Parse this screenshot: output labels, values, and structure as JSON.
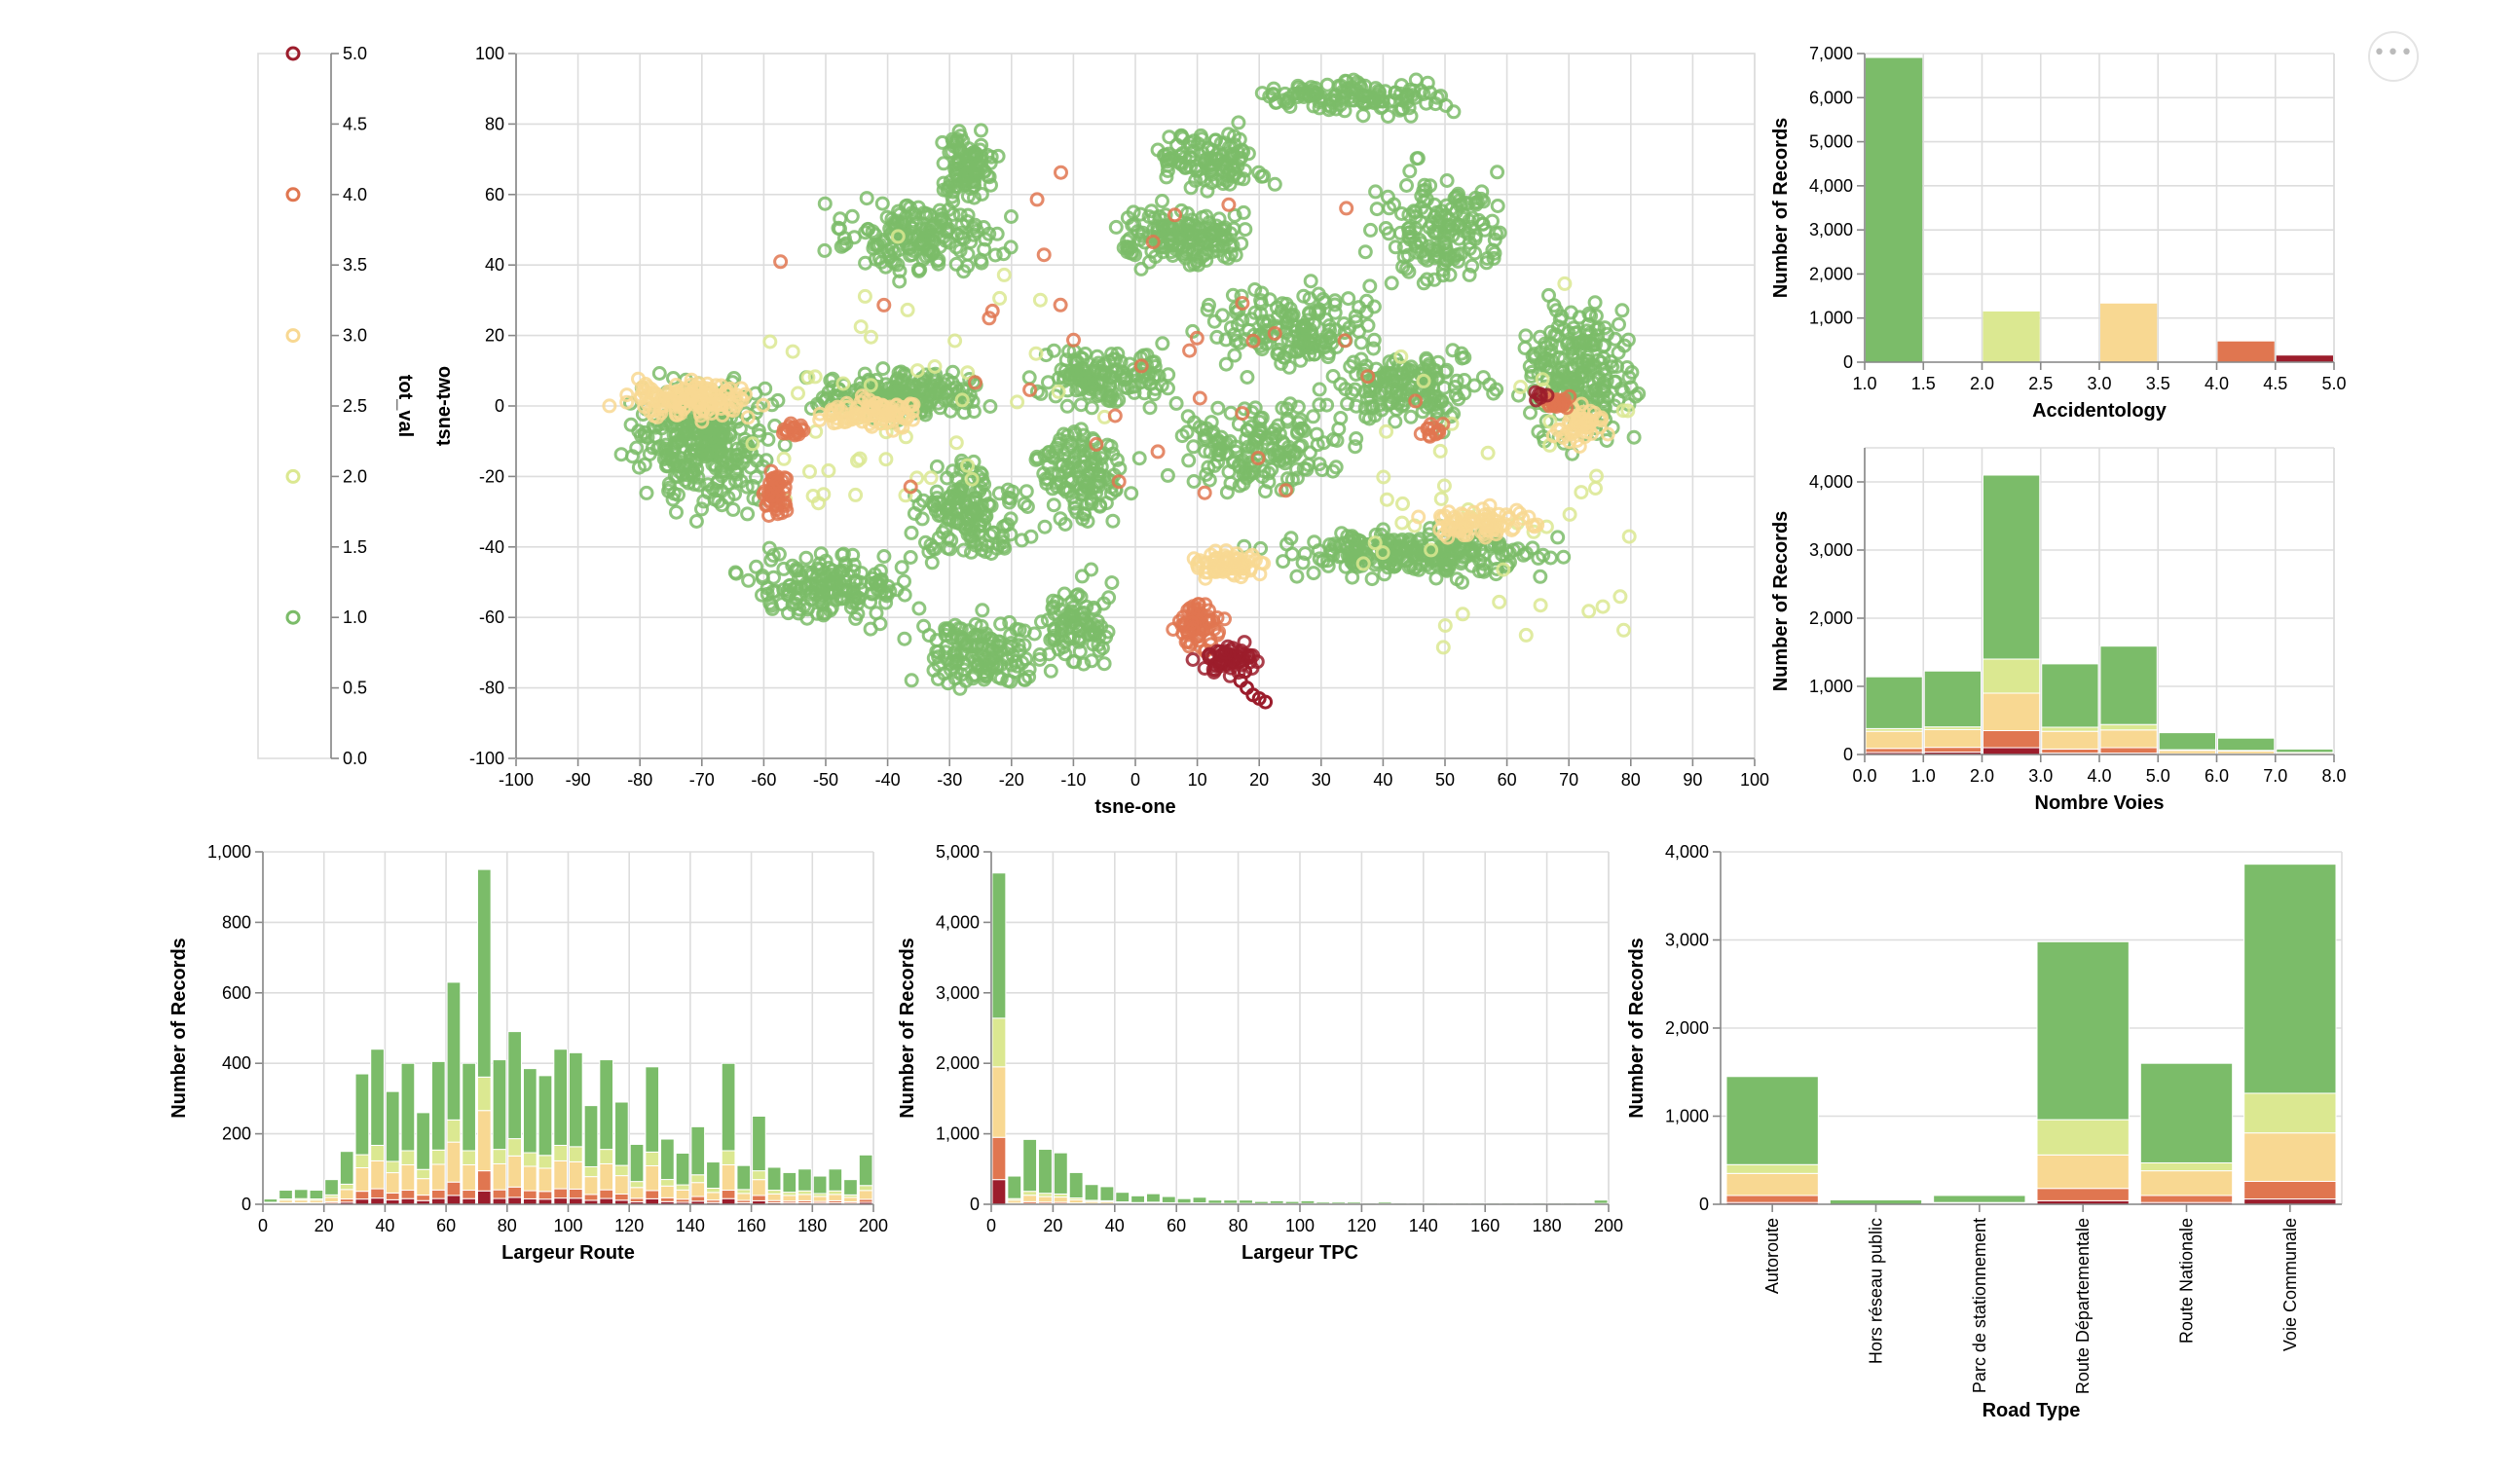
{
  "menu": {
    "icon": "ellipsis-icon",
    "label": "•••"
  },
  "colors": {
    "1": "#7bbc69",
    "2": "#dbe891",
    "3": "#f8d892",
    "4": "#e07650",
    "5": "#9c1d2c"
  },
  "chart_data": [
    {
      "id": "legend",
      "type": "legend",
      "title": "tot_val",
      "ticks": [
        "5.0",
        "4.5",
        "4.0",
        "3.5",
        "3.0",
        "2.5",
        "2.0",
        "1.5",
        "1.0",
        "0.5",
        "0.0"
      ],
      "symbols": [
        5,
        4,
        3,
        2,
        1
      ]
    },
    {
      "id": "scatter",
      "type": "scatter",
      "xlabel": "tsne-one",
      "ylabel": "tsne-two",
      "xlim": [
        -100,
        100
      ],
      "ylim": [
        -100,
        100
      ],
      "xticks": [
        "-100",
        "-90",
        "-80",
        "-70",
        "-60",
        "-50",
        "-40",
        "-30",
        "-20",
        "-10",
        "0",
        "10",
        "20",
        "30",
        "40",
        "50",
        "60",
        "70",
        "80",
        "90",
        "100"
      ],
      "yticks": [
        "100",
        "80",
        "60",
        "40",
        "20",
        "0",
        "-20",
        "-40",
        "-60",
        "-80",
        "-100"
      ],
      "grid": true,
      "clusters": [
        {
          "x": -70,
          "y": -10,
          "sx": 10,
          "sy": 16,
          "n": 320,
          "v": 1
        },
        {
          "x": -72,
          "y": 2,
          "sx": 10,
          "sy": 5,
          "n": 130,
          "v": 3
        },
        {
          "x": -50,
          "y": -52,
          "sx": 12,
          "sy": 9,
          "n": 170,
          "v": 1
        },
        {
          "x": -38,
          "y": 3,
          "sx": 12,
          "sy": 6,
          "n": 200,
          "v": 1
        },
        {
          "x": -42,
          "y": -2,
          "sx": 8,
          "sy": 4,
          "n": 90,
          "v": 3
        },
        {
          "x": -35,
          "y": 48,
          "sx": 12,
          "sy": 10,
          "n": 170,
          "v": 1
        },
        {
          "x": -27,
          "y": 68,
          "sx": 4,
          "sy": 9,
          "n": 100,
          "v": 1
        },
        {
          "x": -27,
          "y": -30,
          "sx": 8,
          "sy": 12,
          "n": 160,
          "v": 1
        },
        {
          "x": -25,
          "y": -70,
          "sx": 10,
          "sy": 10,
          "n": 140,
          "v": 1
        },
        {
          "x": -10,
          "y": -62,
          "sx": 5,
          "sy": 12,
          "n": 90,
          "v": 1
        },
        {
          "x": -8,
          "y": -20,
          "sx": 7,
          "sy": 12,
          "n": 130,
          "v": 1
        },
        {
          "x": -5,
          "y": 8,
          "sx": 10,
          "sy": 8,
          "n": 140,
          "v": 1
        },
        {
          "x": 8,
          "y": 48,
          "sx": 10,
          "sy": 8,
          "n": 160,
          "v": 1
        },
        {
          "x": 12,
          "y": 70,
          "sx": 8,
          "sy": 8,
          "n": 110,
          "v": 1
        },
        {
          "x": 35,
          "y": 88,
          "sx": 15,
          "sy": 5,
          "n": 130,
          "v": 1
        },
        {
          "x": 25,
          "y": 22,
          "sx": 12,
          "sy": 10,
          "n": 160,
          "v": 1
        },
        {
          "x": 20,
          "y": -12,
          "sx": 12,
          "sy": 12,
          "n": 160,
          "v": 1
        },
        {
          "x": 45,
          "y": 5,
          "sx": 12,
          "sy": 10,
          "n": 160,
          "v": 1
        },
        {
          "x": 50,
          "y": 50,
          "sx": 10,
          "sy": 14,
          "n": 160,
          "v": 1
        },
        {
          "x": 72,
          "y": 10,
          "sx": 8,
          "sy": 18,
          "n": 220,
          "v": 1
        },
        {
          "x": 45,
          "y": -42,
          "sx": 20,
          "sy": 6,
          "n": 260,
          "v": 1
        },
        {
          "x": 55,
          "y": -33,
          "sx": 8,
          "sy": 4,
          "n": 80,
          "v": 3
        },
        {
          "x": 15,
          "y": -45,
          "sx": 6,
          "sy": 4,
          "n": 70,
          "v": 3
        },
        {
          "x": 72,
          "y": -5,
          "sx": 4,
          "sy": 5,
          "n": 45,
          "v": 3
        },
        {
          "x": -58,
          "y": -25,
          "sx": 2,
          "sy": 5,
          "n": 55,
          "v": 4
        },
        {
          "x": -55,
          "y": -7,
          "sx": 2,
          "sy": 2,
          "n": 18,
          "v": 4
        },
        {
          "x": 10,
          "y": -62,
          "sx": 3,
          "sy": 6,
          "n": 70,
          "v": 4
        },
        {
          "x": 68,
          "y": 1,
          "sx": 2,
          "sy": 2,
          "n": 22,
          "v": 4
        },
        {
          "x": 48,
          "y": -7,
          "sx": 2,
          "sy": 2,
          "n": 12,
          "v": 4
        },
        {
          "x": 15,
          "y": -72,
          "sx": 4,
          "sy": 4,
          "n": 60,
          "v": 5
        },
        {
          "x": 65,
          "y": 3,
          "sx": 1.2,
          "sy": 1.2,
          "n": 6,
          "v": 5
        },
        {
          "x": 60,
          "y": -20,
          "sx": 30,
          "sy": 50,
          "n": 50,
          "v": 2
        },
        {
          "x": -40,
          "y": 0,
          "sx": 30,
          "sy": 40,
          "n": 50,
          "v": 2
        },
        {
          "x": 0,
          "y": 10,
          "sx": 50,
          "sy": 50,
          "n": 35,
          "v": 4
        }
      ],
      "worm": {
        "x": [
          17,
          18,
          19,
          20,
          21
        ],
        "y": [
          -78,
          -80,
          -82,
          -83,
          -84
        ],
        "v": 5
      }
    },
    {
      "id": "accidentology",
      "type": "bar",
      "xlabel": "Accidentology",
      "ylabel": "Number of Records",
      "xlim": [
        1,
        5
      ],
      "ylim": [
        0,
        7000
      ],
      "xticks": [
        "1.0",
        "1.5",
        "2.0",
        "2.5",
        "3.0",
        "3.5",
        "4.0",
        "4.5",
        "5.0"
      ],
      "yticks": [
        "7,000",
        "6,000",
        "5,000",
        "4,000",
        "3,000",
        "2,000",
        "1,000",
        "0"
      ],
      "grid": true,
      "bars": [
        {
          "x0": 1.0,
          "x1": 1.5,
          "value": 6900,
          "v": 1
        },
        {
          "x0": 2.0,
          "x1": 2.5,
          "value": 1150,
          "v": 2
        },
        {
          "x0": 3.0,
          "x1": 3.5,
          "value": 1330,
          "v": 3
        },
        {
          "x0": 4.0,
          "x1": 4.5,
          "value": 470,
          "v": 4
        },
        {
          "x0": 4.5,
          "x1": 5.0,
          "value": 150,
          "v": 5
        }
      ]
    },
    {
      "id": "nombre-voies",
      "type": "bar",
      "stacked": true,
      "xlabel": "Nombre Voies",
      "ylabel": "Number of Records",
      "xlim": [
        0,
        8
      ],
      "ylim": [
        0,
        4500
      ],
      "xticks": [
        "0.0",
        "1.0",
        "2.0",
        "3.0",
        "4.0",
        "5.0",
        "6.0",
        "7.0",
        "8.0"
      ],
      "yticks": [
        "4,000",
        "3,000",
        "2,000",
        "1,000",
        "0"
      ],
      "grid": true,
      "bins": [
        {
          "x0": 0,
          "x1": 1,
          "stack": [
            760,
            40,
            250,
            60,
            30
          ]
        },
        {
          "x0": 1,
          "x1": 2,
          "stack": [
            820,
            40,
            260,
            70,
            35
          ]
        },
        {
          "x0": 2,
          "x1": 2.5,
          "stack": [
            2700,
            500,
            550,
            250,
            100
          ]
        },
        {
          "x0": 2.5,
          "x1": 3,
          "stack": [
            2700,
            500,
            550,
            250,
            100
          ]
        },
        {
          "x0": 3,
          "x1": 4,
          "stack": [
            930,
            60,
            260,
            60,
            20
          ]
        },
        {
          "x0": 4,
          "x1": 5,
          "stack": [
            1150,
            80,
            260,
            80,
            20
          ]
        },
        {
          "x0": 5,
          "x1": 6,
          "stack": [
            250,
            10,
            50,
            10,
            0
          ]
        },
        {
          "x0": 6,
          "x1": 7,
          "stack": [
            180,
            10,
            40,
            10,
            0
          ]
        },
        {
          "x0": 7,
          "x1": 8,
          "stack": [
            50,
            5,
            20,
            5,
            0
          ]
        }
      ]
    },
    {
      "id": "largeur-route",
      "type": "bar",
      "stacked": true,
      "xlabel": "Largeur Route",
      "ylabel": "Number of Records",
      "xlim": [
        0,
        200
      ],
      "ylim": [
        0,
        1000
      ],
      "xticks": [
        "0",
        "20",
        "40",
        "60",
        "80",
        "100",
        "120",
        "140",
        "160",
        "180",
        "200"
      ],
      "yticks": [
        "1,000",
        "800",
        "600",
        "400",
        "200",
        "0"
      ],
      "grid": true,
      "binWidth": 5,
      "totals": [
        15,
        40,
        42,
        40,
        70,
        150,
        370,
        440,
        320,
        400,
        260,
        405,
        630,
        400,
        950,
        410,
        490,
        385,
        365,
        440,
        430,
        280,
        410,
        290,
        170,
        390,
        185,
        145,
        220,
        120,
        400,
        110,
        250,
        105,
        90,
        100,
        80,
        100,
        70,
        140
      ],
      "shares": [
        0.62,
        0.1,
        0.18,
        0.06,
        0.04
      ]
    },
    {
      "id": "largeur-tpc",
      "type": "bar",
      "stacked": true,
      "xlabel": "Largeur TPC",
      "ylabel": "Number of Records",
      "xlim": [
        0,
        200
      ],
      "ylim": [
        0,
        5000
      ],
      "xticks": [
        "0",
        "20",
        "40",
        "60",
        "80",
        "100",
        "120",
        "140",
        "160",
        "180",
        "200"
      ],
      "yticks": [
        "5,000",
        "4,000",
        "3,000",
        "2,000",
        "1,000",
        "0"
      ],
      "grid": true,
      "binWidth": 5,
      "first": [
        2060,
        690,
        1000,
        600,
        350
      ],
      "totals": [
        4700,
        400,
        920,
        780,
        730,
        450,
        280,
        250,
        170,
        120,
        150,
        110,
        80,
        100,
        60,
        60,
        60,
        40,
        50,
        40,
        50,
        30,
        30,
        30,
        20,
        30,
        20,
        20,
        20,
        20,
        20,
        20,
        20,
        20,
        20,
        20,
        20,
        20,
        20,
        60
      ],
      "shares": [
        0.8,
        0.06,
        0.1,
        0.03,
        0.01
      ]
    },
    {
      "id": "road-type",
      "type": "bar",
      "stacked": true,
      "xlabel": "Road Type",
      "ylabel": "Number of Records",
      "ylim": [
        0,
        4000
      ],
      "yticks": [
        "4,000",
        "3,000",
        "2,000",
        "1,000",
        "0"
      ],
      "grid": true,
      "categories": [
        "Autoroute",
        "Hors réseau public",
        "Parc de stationnement",
        "Route Départementale",
        "Route Nationale",
        "Voie Communale"
      ],
      "stacks": [
        [
          1000,
          100,
          250,
          80,
          20
        ],
        [
          50,
          0,
          0,
          0,
          0
        ],
        [
          80,
          10,
          10,
          0,
          0
        ],
        [
          2020,
          400,
          380,
          140,
          40
        ],
        [
          1130,
          90,
          280,
          80,
          20
        ],
        [
          2600,
          450,
          550,
          200,
          60
        ]
      ]
    }
  ]
}
